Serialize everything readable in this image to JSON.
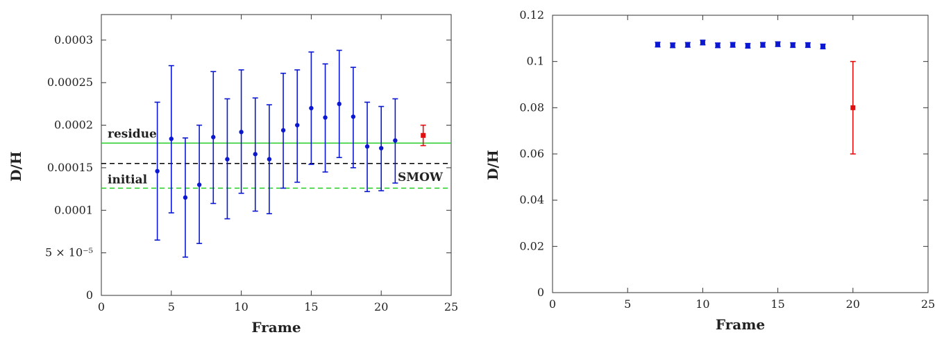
{
  "chart_data": [
    {
      "type": "scatter",
      "xlabel": "Frame",
      "ylabel": "D/H",
      "xlim": [
        0,
        25
      ],
      "ylim": [
        0,
        0.00033
      ],
      "xticks": [
        0,
        5,
        10,
        15,
        20,
        25
      ],
      "xtick_labels": [
        "0",
        "5",
        "10",
        "15",
        "20",
        "25"
      ],
      "yticks": [
        0,
        5e-05,
        0.0001,
        0.00015,
        0.0002,
        0.00025,
        0.0003
      ],
      "ytick_labels": [
        "0",
        "5 × 10⁻⁵",
        "0.0001",
        "0.00015",
        "0.0002",
        "0.00025",
        "0.0003"
      ],
      "series": [
        {
          "color": "#0b18d0",
          "marker": "circle",
          "points": [
            {
              "x": 4,
              "y": 0.000146,
              "lo": 6.5e-05,
              "hi": 0.000227
            },
            {
              "x": 5,
              "y": 0.000184,
              "lo": 9.7e-05,
              "hi": 0.00027
            },
            {
              "x": 6,
              "y": 0.000115,
              "lo": 4.5e-05,
              "hi": 0.000185
            },
            {
              "x": 7,
              "y": 0.00013,
              "lo": 6.1e-05,
              "hi": 0.0002
            },
            {
              "x": 8,
              "y": 0.000186,
              "lo": 0.000108,
              "hi": 0.000263
            },
            {
              "x": 9,
              "y": 0.00016,
              "lo": 9e-05,
              "hi": 0.000231
            },
            {
              "x": 10,
              "y": 0.000192,
              "lo": 0.00012,
              "hi": 0.000265
            },
            {
              "x": 11,
              "y": 0.000166,
              "lo": 9.9e-05,
              "hi": 0.000232
            },
            {
              "x": 12,
              "y": 0.00016,
              "lo": 9.6e-05,
              "hi": 0.000224
            },
            {
              "x": 13,
              "y": 0.000194,
              "lo": 0.000126,
              "hi": 0.000261
            },
            {
              "x": 14,
              "y": 0.0002,
              "lo": 0.000133,
              "hi": 0.000265
            },
            {
              "x": 15,
              "y": 0.00022,
              "lo": 0.000154,
              "hi": 0.000286
            },
            {
              "x": 16,
              "y": 0.000209,
              "lo": 0.000145,
              "hi": 0.000272
            },
            {
              "x": 17,
              "y": 0.000225,
              "lo": 0.000162,
              "hi": 0.000288
            },
            {
              "x": 18,
              "y": 0.00021,
              "lo": 0.00015,
              "hi": 0.000268
            },
            {
              "x": 19,
              "y": 0.000175,
              "lo": 0.000122,
              "hi": 0.000227
            },
            {
              "x": 20,
              "y": 0.000173,
              "lo": 0.000123,
              "hi": 0.000222
            },
            {
              "x": 21,
              "y": 0.000182,
              "lo": 0.000132,
              "hi": 0.000231
            }
          ]
        },
        {
          "color": "#e01010",
          "marker": "square",
          "points": [
            {
              "x": 23,
              "y": 0.000188,
              "lo": 0.000176,
              "hi": 0.0002
            }
          ]
        }
      ],
      "hlines": [
        {
          "y": 0.000179,
          "color": "#22cc22",
          "style": "solid",
          "label": "residue"
        },
        {
          "y": 0.000155,
          "color": "#000000",
          "style": "dashed",
          "label": "SMOW"
        },
        {
          "y": 0.000126,
          "color": "#22cc22",
          "style": "dashed",
          "label": "initial"
        }
      ],
      "grid": false
    },
    {
      "type": "scatter",
      "xlabel": "Frame",
      "ylabel": "D/H",
      "xlim": [
        0,
        25
      ],
      "ylim": [
        0,
        0.12
      ],
      "xticks": [
        0,
        5,
        10,
        15,
        20,
        25
      ],
      "xtick_labels": [
        "0",
        "5",
        "10",
        "15",
        "20",
        "25"
      ],
      "yticks": [
        0,
        0.02,
        0.04,
        0.06,
        0.08,
        0.1,
        0.12
      ],
      "ytick_labels": [
        "0",
        "0.02",
        "0.04",
        "0.06",
        "0.08",
        "0.1",
        "0.12"
      ],
      "series": [
        {
          "color": "#0b18d0",
          "marker": "square",
          "points": [
            {
              "x": 7,
              "y": 0.1073,
              "lo": 0.1063,
              "hi": 0.1083
            },
            {
              "x": 8,
              "y": 0.107,
              "lo": 0.106,
              "hi": 0.108
            },
            {
              "x": 9,
              "y": 0.1072,
              "lo": 0.1062,
              "hi": 0.1082
            },
            {
              "x": 10,
              "y": 0.1082,
              "lo": 0.1072,
              "hi": 0.1092
            },
            {
              "x": 11,
              "y": 0.107,
              "lo": 0.106,
              "hi": 0.108
            },
            {
              "x": 12,
              "y": 0.1072,
              "lo": 0.1062,
              "hi": 0.1082
            },
            {
              "x": 13,
              "y": 0.1068,
              "lo": 0.1058,
              "hi": 0.1078
            },
            {
              "x": 14,
              "y": 0.1072,
              "lo": 0.1062,
              "hi": 0.1082
            },
            {
              "x": 15,
              "y": 0.1075,
              "lo": 0.1065,
              "hi": 0.1085
            },
            {
              "x": 16,
              "y": 0.1071,
              "lo": 0.1061,
              "hi": 0.1081
            },
            {
              "x": 17,
              "y": 0.1071,
              "lo": 0.1061,
              "hi": 0.1081
            },
            {
              "x": 18,
              "y": 0.1065,
              "lo": 0.1055,
              "hi": 0.1075
            }
          ]
        },
        {
          "color": "#e01010",
          "marker": "square",
          "points": [
            {
              "x": 20,
              "y": 0.08,
              "lo": 0.06,
              "hi": 0.1
            }
          ]
        }
      ],
      "hlines": [],
      "grid": false
    }
  ]
}
